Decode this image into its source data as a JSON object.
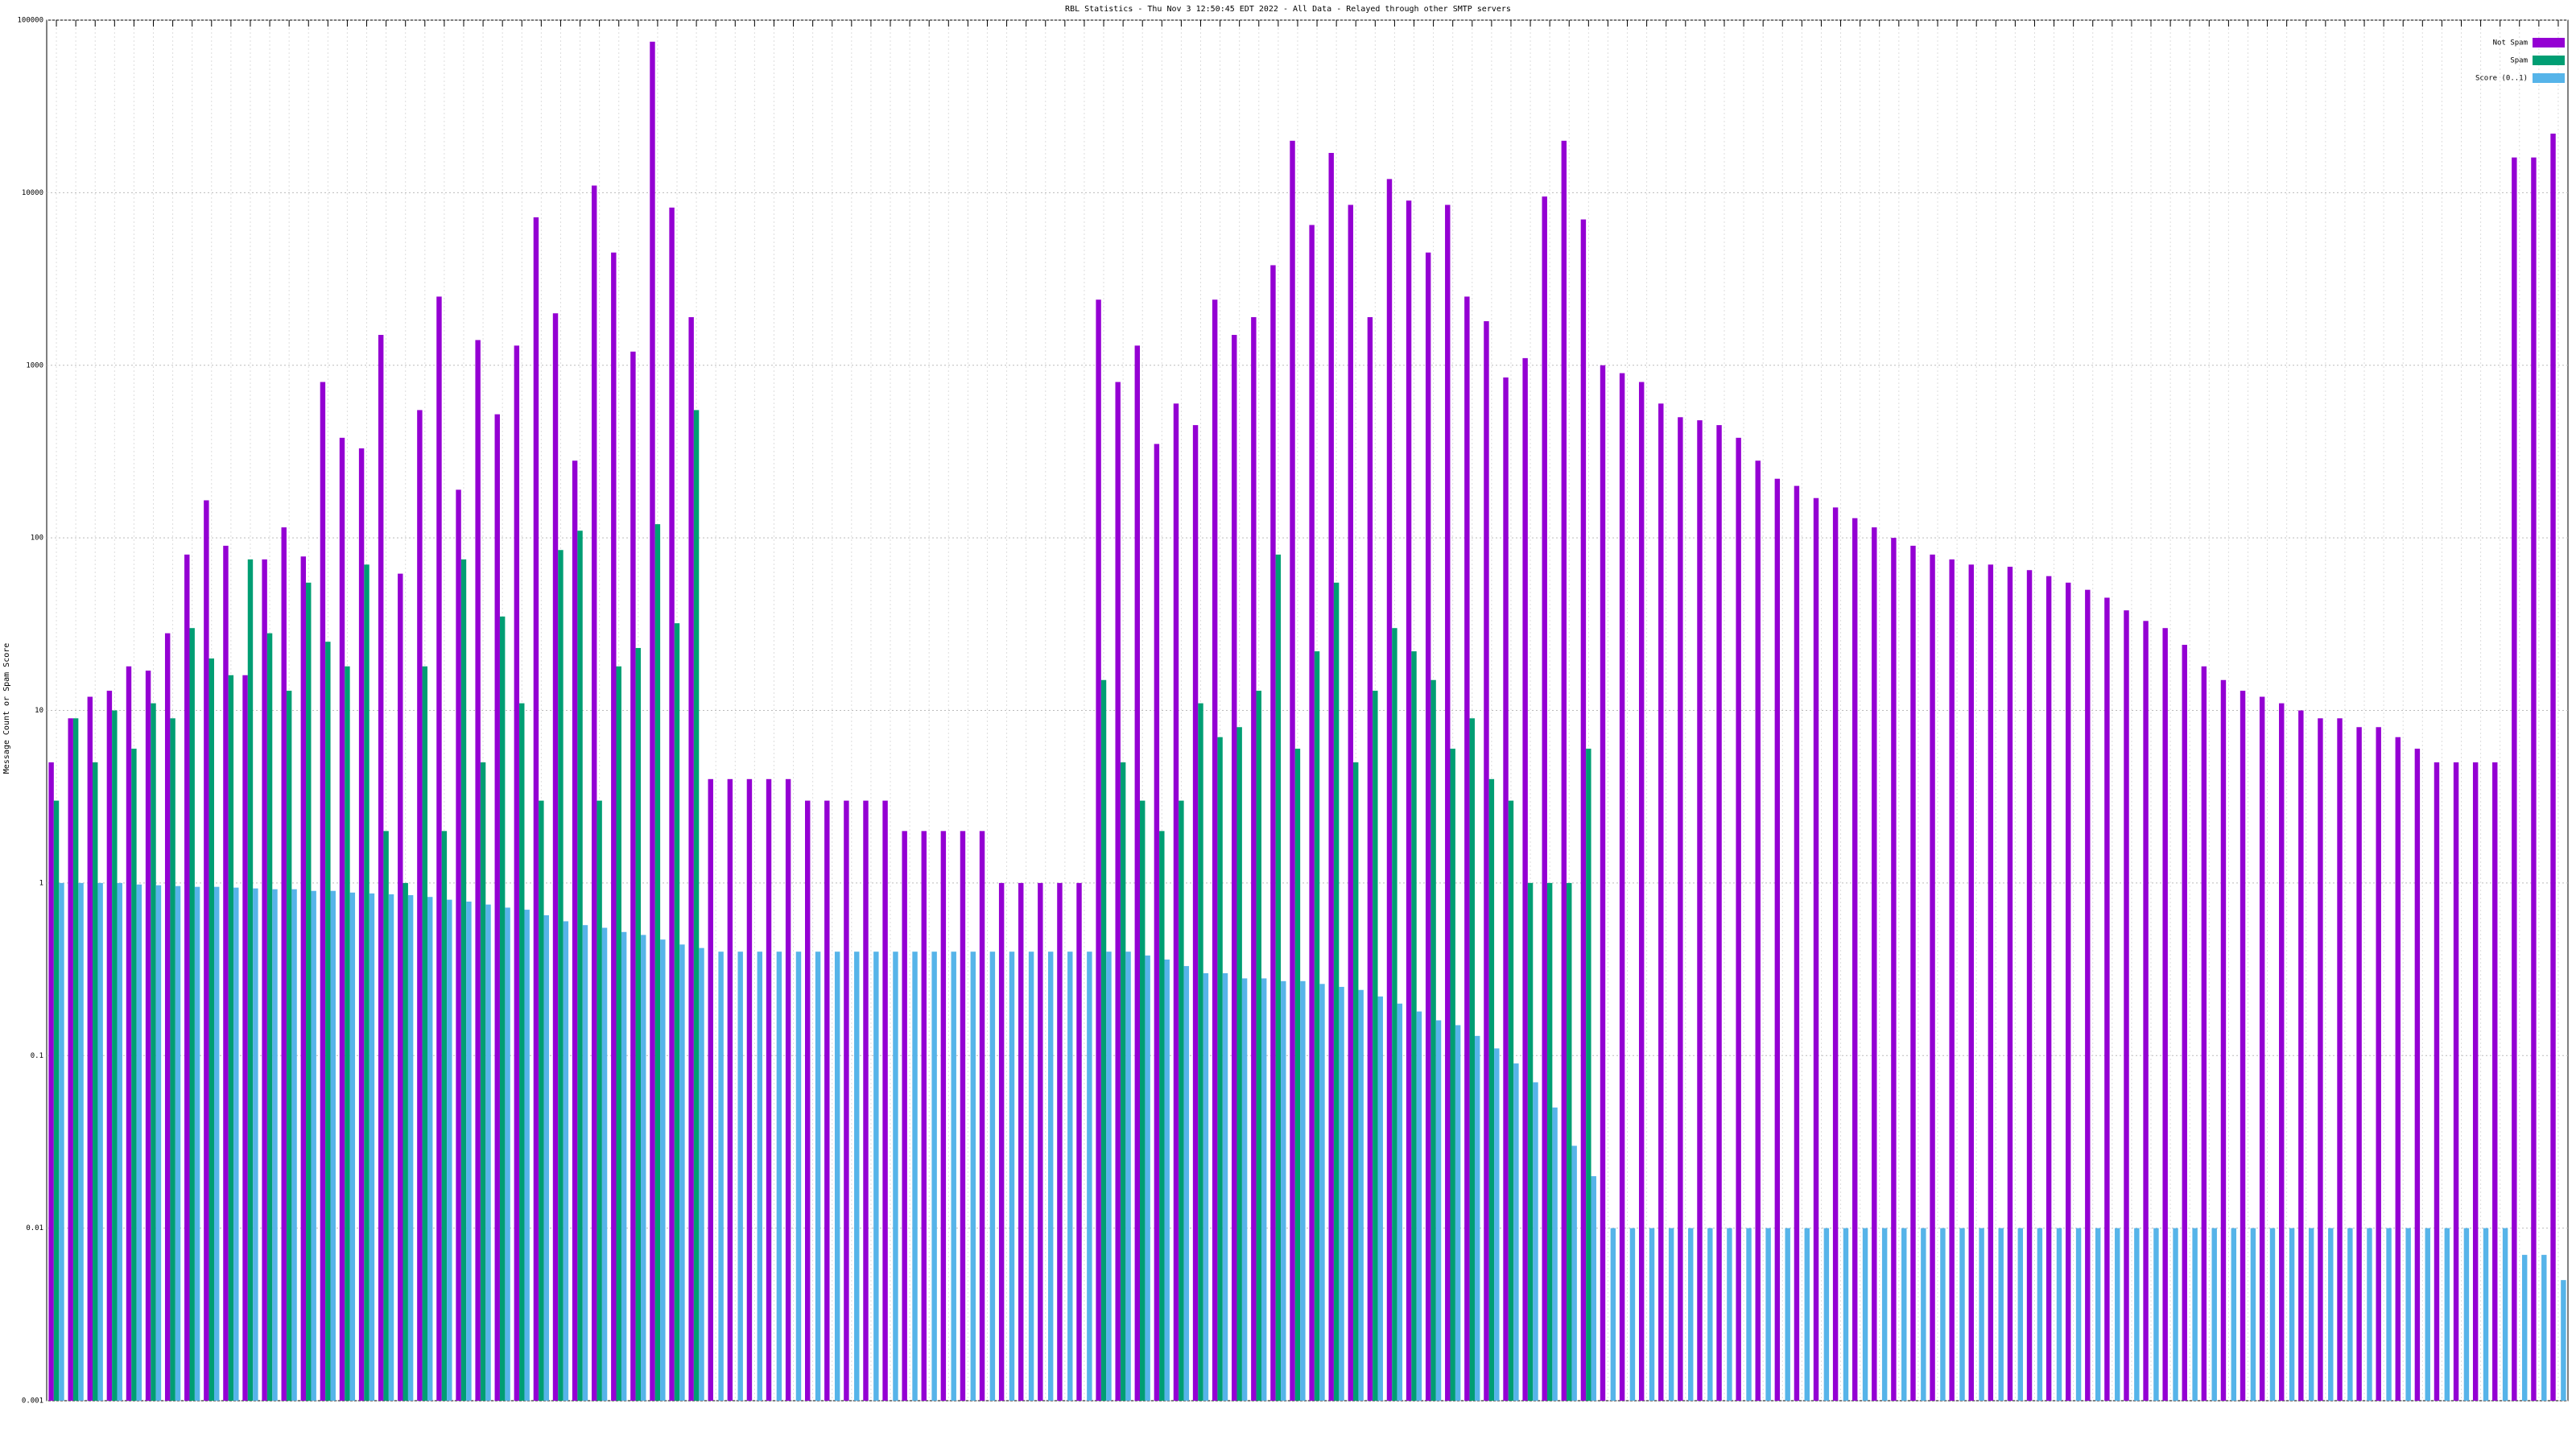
{
  "chart_data": {
    "type": "bar",
    "title": "RBL Statistics - Thu Nov  3 12:50:45 EDT 2022 - All Data - Relayed through other SMTP servers",
    "ylabel": "Message Count or Spam Score",
    "log_scale": true,
    "grid": true,
    "legend": "top-right",
    "ylim": [
      0.001,
      100000
    ],
    "yticks": [
      0.001,
      0.01,
      0.1,
      1,
      10,
      100,
      1000,
      10000,
      100000
    ],
    "series": [
      {
        "name": "Not Spam",
        "color": "#9400d3",
        "values": [
          5,
          9,
          12,
          13,
          18,
          17,
          28,
          80,
          165,
          90,
          16,
          75,
          115,
          78,
          800,
          380,
          330,
          1500,
          62,
          550,
          2500,
          190,
          1400,
          520,
          1300,
          7200,
          2000,
          280,
          11000,
          4500,
          1200,
          75000,
          8200,
          1900,
          4,
          4,
          4,
          4,
          4,
          3,
          3,
          3,
          3,
          3,
          2,
          2,
          2,
          2,
          2,
          1,
          1,
          1,
          1,
          1,
          2400,
          800,
          1300,
          350,
          600,
          450,
          2400,
          1500,
          1900,
          3800,
          20000,
          6500,
          17000,
          8500,
          1900,
          12000,
          9000,
          4500,
          8500,
          2500,
          1800,
          850,
          1100,
          9500,
          20000,
          7000,
          1000,
          900,
          800,
          600,
          500,
          480,
          450,
          380,
          280,
          220,
          200,
          170,
          150,
          130,
          115,
          100,
          90,
          80,
          75,
          70,
          70,
          68,
          65,
          60,
          55,
          50,
          45,
          38,
          33,
          30,
          24,
          18,
          15,
          13,
          12,
          11,
          10,
          9,
          9,
          8,
          8,
          7,
          6,
          5,
          5,
          5,
          5,
          16000,
          16000,
          22000
        ]
      },
      {
        "name": "Spam",
        "color": "#009e73",
        "values": [
          3,
          9,
          5,
          10,
          6,
          11,
          9,
          30,
          20,
          16,
          75,
          28,
          13,
          55,
          25,
          18,
          70,
          2,
          1,
          18,
          2,
          75,
          5,
          35,
          11,
          3,
          85,
          110,
          3,
          18,
          23,
          120,
          32,
          550,
          null,
          null,
          null,
          null,
          null,
          null,
          null,
          null,
          null,
          null,
          null,
          null,
          null,
          null,
          null,
          null,
          null,
          null,
          null,
          null,
          15,
          5,
          3,
          2,
          3,
          11,
          7,
          8,
          13,
          80,
          6,
          22,
          55,
          5,
          13,
          30,
          22,
          15,
          6,
          9,
          4,
          3,
          1,
          1,
          1,
          6,
          null,
          null,
          null,
          null,
          null,
          null,
          null,
          null,
          null,
          null,
          null,
          null,
          null,
          null,
          null,
          null,
          null,
          null,
          null,
          null,
          null,
          null,
          null,
          null,
          null,
          null,
          null,
          null,
          null,
          null,
          null,
          null,
          null,
          null,
          null,
          null,
          null,
          null,
          null,
          null,
          null,
          null,
          null,
          null,
          null,
          null,
          null,
          null,
          null,
          null
        ]
      },
      {
        "name": "Score (0..1)",
        "color": "#56b4e9",
        "values": [
          1,
          1,
          1,
          1,
          0.98,
          0.97,
          0.96,
          0.95,
          0.95,
          0.94,
          0.93,
          0.92,
          0.92,
          0.9,
          0.9,
          0.88,
          0.87,
          0.86,
          0.85,
          0.83,
          0.8,
          0.78,
          0.75,
          0.72,
          0.7,
          0.65,
          0.6,
          0.57,
          0.55,
          0.52,
          0.5,
          0.47,
          0.44,
          0.42,
          0.4,
          0.4,
          0.4,
          0.4,
          0.4,
          0.4,
          0.4,
          0.4,
          0.4,
          0.4,
          0.4,
          0.4,
          0.4,
          0.4,
          0.4,
          0.4,
          0.4,
          0.4,
          0.4,
          0.4,
          0.4,
          0.4,
          0.38,
          0.36,
          0.33,
          0.3,
          0.3,
          0.28,
          0.28,
          0.27,
          0.27,
          0.26,
          0.25,
          0.24,
          0.22,
          0.2,
          0.18,
          0.16,
          0.15,
          0.13,
          0.11,
          0.09,
          0.07,
          0.05,
          0.03,
          0.02,
          0.01,
          0.01,
          0.01,
          0.01,
          0.01,
          0.01,
          0.01,
          0.01,
          0.01,
          0.01,
          0.01,
          0.01,
          0.01,
          0.01,
          0.01,
          0.01,
          0.01,
          0.01,
          0.01,
          0.01,
          0.01,
          0.01,
          0.01,
          0.01,
          0.01,
          0.01,
          0.01,
          0.01,
          0.01,
          0.01,
          0.01,
          0.01,
          0.01,
          0.01,
          0.01,
          0.01,
          0.01,
          0.01,
          0.01,
          0.01,
          0.01,
          0.01,
          0.01,
          0.01,
          0.01,
          0.01,
          0.01,
          0.007,
          0.007,
          0.005
        ]
      }
    ]
  }
}
